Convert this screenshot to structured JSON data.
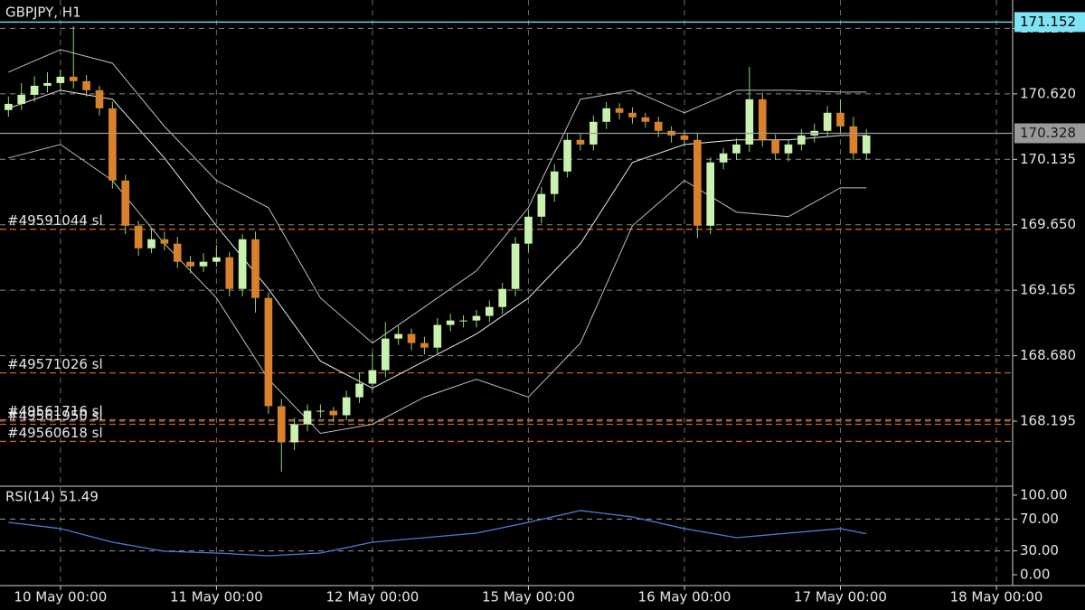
{
  "chart_data": [
    {
      "type": "candlestick",
      "title": "GBPJPY, H1",
      "x": [
        -8,
        -6,
        -4,
        -2,
        0,
        2,
        4,
        6,
        8,
        10,
        12,
        14,
        16,
        18,
        20,
        22,
        24,
        26,
        28,
        30,
        32,
        34,
        36,
        38,
        40,
        42,
        44,
        46,
        48,
        50,
        52,
        54,
        56,
        58,
        60,
        62,
        64,
        66,
        68,
        70,
        72,
        74,
        76,
        78,
        80,
        82,
        84,
        86,
        88,
        90,
        92,
        94,
        96,
        98,
        100,
        102,
        104,
        106,
        108,
        110,
        112,
        114,
        116,
        118,
        120,
        122,
        124
      ],
      "open": [
        170.5,
        170.546,
        170.613,
        170.68,
        170.7,
        170.747,
        170.714,
        170.647,
        170.513,
        169.978,
        169.643,
        169.476,
        169.543,
        169.51,
        169.376,
        169.342,
        169.376,
        169.409,
        169.175,
        169.543,
        169.108,
        168.306,
        168.038,
        168.172,
        168.272,
        168.272,
        168.239,
        168.372,
        168.473,
        168.573,
        168.807,
        168.841,
        168.774,
        168.74,
        168.908,
        168.941,
        168.941,
        168.975,
        169.041,
        169.175,
        169.51,
        169.71,
        169.878,
        170.045,
        170.279,
        170.245,
        170.413,
        170.513,
        170.48,
        170.446,
        170.413,
        170.346,
        170.312,
        170.279,
        169.643,
        170.112,
        170.179,
        170.245,
        170.58,
        170.279,
        170.179,
        170.245,
        170.312,
        170.346,
        170.48,
        170.379,
        170.179
      ],
      "high": [
        170.6,
        170.7,
        170.75,
        170.78,
        170.8,
        171.12,
        170.76,
        170.68,
        170.56,
        170.02,
        169.68,
        169.62,
        169.6,
        169.56,
        169.42,
        169.44,
        169.5,
        169.45,
        169.58,
        169.6,
        169.15,
        168.36,
        168.22,
        168.32,
        168.32,
        168.3,
        168.42,
        168.55,
        168.7,
        168.93,
        168.9,
        168.88,
        168.82,
        168.96,
        168.99,
        168.98,
        169.02,
        169.09,
        169.22,
        169.56,
        169.76,
        169.93,
        170.1,
        170.33,
        170.33,
        170.46,
        170.56,
        170.55,
        170.52,
        170.48,
        170.45,
        170.38,
        170.35,
        170.33,
        170.15,
        170.22,
        170.29,
        170.82,
        170.63,
        170.32,
        170.28,
        170.36,
        170.4,
        170.53,
        170.58,
        170.45,
        170.36
      ],
      "low": [
        170.45,
        170.5,
        170.56,
        170.63,
        170.65,
        170.66,
        170.6,
        170.46,
        169.92,
        169.58,
        169.42,
        169.44,
        169.46,
        169.33,
        169.29,
        169.3,
        169.34,
        169.12,
        169.12,
        169.0,
        168.25,
        167.82,
        167.98,
        168.12,
        168.22,
        168.19,
        168.2,
        168.33,
        168.42,
        168.52,
        168.76,
        168.72,
        168.69,
        168.69,
        168.86,
        168.89,
        168.89,
        168.93,
        168.99,
        169.12,
        169.45,
        169.66,
        169.82,
        170.0,
        170.2,
        170.2,
        170.36,
        170.43,
        170.4,
        170.37,
        170.3,
        170.26,
        170.23,
        169.55,
        169.58,
        170.06,
        170.13,
        170.19,
        170.23,
        170.13,
        170.12,
        170.2,
        170.26,
        170.3,
        170.33,
        170.13,
        170.13
      ],
      "close": [
        170.546,
        170.613,
        170.68,
        170.7,
        170.747,
        170.714,
        170.647,
        170.513,
        169.978,
        169.643,
        169.476,
        169.543,
        169.51,
        169.376,
        169.342,
        169.376,
        169.409,
        169.175,
        169.543,
        169.108,
        168.306,
        168.038,
        168.172,
        168.272,
        168.272,
        168.239,
        168.372,
        168.473,
        168.573,
        168.807,
        168.841,
        168.774,
        168.74,
        168.908,
        168.941,
        168.941,
        168.975,
        169.041,
        169.175,
        169.51,
        169.71,
        169.878,
        170.045,
        170.279,
        170.245,
        170.413,
        170.513,
        170.48,
        170.446,
        170.413,
        170.346,
        170.312,
        170.279,
        169.643,
        170.112,
        170.179,
        170.245,
        170.58,
        170.279,
        170.179,
        170.245,
        170.312,
        170.346,
        170.48,
        170.379,
        170.179,
        170.312
      ],
      "up_color": "#c9f2b0",
      "down_color": "#d9822b",
      "wick_color": "#8fd66a",
      "band_x": [
        -8,
        0,
        8,
        16,
        24,
        32,
        40,
        48,
        56,
        64,
        72,
        80,
        88,
        96,
        104,
        112,
        120,
        124
      ],
      "bands": [
        {
          "color": "#e8e8e8",
          "values": [
            170.513,
            170.647,
            170.58,
            170.145,
            169.643,
            169.175,
            168.64,
            168.439,
            168.64,
            168.841,
            169.108,
            169.51,
            170.112,
            170.245,
            170.279,
            170.279,
            170.312,
            170.312
          ]
        },
        {
          "color": "#bdbdbd",
          "values": [
            170.781,
            170.948,
            170.847,
            170.379,
            169.978,
            169.777,
            169.108,
            168.774,
            169.041,
            169.309,
            169.777,
            170.58,
            170.647,
            170.48,
            170.647,
            170.647,
            170.633,
            170.633
          ]
        },
        {
          "color": "#bdbdbd",
          "values": [
            170.145,
            170.245,
            169.978,
            169.51,
            169.108,
            168.506,
            168.105,
            168.172,
            168.373,
            168.506,
            168.373,
            168.774,
            169.643,
            169.978,
            169.744,
            169.71,
            169.924,
            169.924
          ]
        }
      ],
      "orders": [
        {
          "label": "#49591044 sl",
          "price": 169.617
        },
        {
          "label": "#49571026 sl",
          "price": 168.553
        },
        {
          "label": "#49561716 sl",
          "price": 168.205
        },
        {
          "label": "#49561950 sl",
          "price": 168.172
        },
        {
          "label": "#49560618 sl",
          "price": 168.045
        }
      ],
      "order_color": "#c8602a",
      "highlight": {
        "value": 171.152,
        "label": "171.152",
        "color": "#7fe3f5"
      },
      "current": {
        "value": 170.328,
        "label": "170.328",
        "color": "#9a9a9a"
      },
      "xlim": [
        -9.3,
        146.5
      ],
      "ylim": [
        167.72,
        171.282
      ],
      "yticks": [
        {
          "value": 171.105,
          "label": "171.105"
        },
        {
          "value": 170.62,
          "label": "170.620"
        },
        {
          "value": 170.135,
          "label": "170.135"
        },
        {
          "value": 169.65,
          "label": "169.650"
        },
        {
          "value": 169.165,
          "label": "169.165"
        },
        {
          "value": 168.68,
          "label": "168.680"
        },
        {
          "value": 168.195,
          "label": "168.195"
        }
      ],
      "xticks": [
        {
          "value": 0,
          "label": "10 May 00:00"
        },
        {
          "value": 24,
          "label": "11 May 00:00"
        },
        {
          "value": 48,
          "label": "12 May 00:00"
        },
        {
          "value": 72,
          "label": "15 May 00:00"
        },
        {
          "value": 96,
          "label": "16 May 00:00"
        },
        {
          "value": 120,
          "label": "17 May 00:00"
        },
        {
          "value": 144,
          "label": "18 May 00:00"
        }
      ],
      "grid": true
    },
    {
      "type": "line",
      "title": "RSI(14) 51.49",
      "x": [
        -8,
        0,
        8,
        16,
        24,
        32,
        40,
        48,
        56,
        64,
        72,
        80,
        88,
        96,
        104,
        112,
        120,
        124
      ],
      "series": [
        {
          "color": "#4a7bd0",
          "values": [
            65.9,
            58,
            40.9,
            29.5,
            27.3,
            23.9,
            27.3,
            40.9,
            46.6,
            52.3,
            65.9,
            80.7,
            72.7,
            58,
            46.6,
            52.3,
            58,
            51.49
          ]
        }
      ],
      "xlim": [
        -9.3,
        146.5
      ],
      "ylim": [
        -13.6,
        109
      ],
      "yticks": [
        {
          "value": 100,
          "label": "100.00"
        },
        {
          "value": 70,
          "label": "70.00"
        },
        {
          "value": 30,
          "label": "30.00"
        },
        {
          "value": 0,
          "label": "0.00"
        }
      ],
      "grid_ticks": [
        70,
        30
      ]
    }
  ]
}
